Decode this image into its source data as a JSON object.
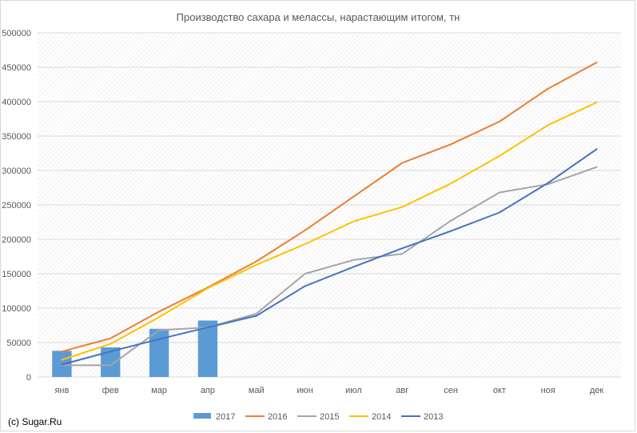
{
  "watermark": "(c) Sugar.Ru",
  "chart_data": {
    "type": "bar+line",
    "title": "Производство сахара и мелассы, нарастающим итогом, тн",
    "xlabel": "",
    "ylabel": "",
    "categories": [
      "янв",
      "фев",
      "мар",
      "апр",
      "май",
      "июн",
      "июл",
      "авг",
      "сен",
      "окт",
      "ноя",
      "дек"
    ],
    "ylim": [
      0,
      500000
    ],
    "yticks": [
      0,
      50000,
      100000,
      150000,
      200000,
      250000,
      300000,
      350000,
      400000,
      450000,
      500000
    ],
    "grid": true,
    "legend_position": "bottom",
    "series": [
      {
        "name": "2017",
        "type": "bar",
        "color": "#5b9bd5",
        "values": [
          38000,
          43000,
          70000,
          82000,
          null,
          null,
          null,
          null,
          null,
          null,
          null,
          null
        ]
      },
      {
        "name": "2016",
        "type": "line",
        "color": "#ed7d31",
        "values": [
          37000,
          56000,
          95000,
          130000,
          168000,
          213000,
          262000,
          311000,
          338000,
          371000,
          419000,
          457000
        ]
      },
      {
        "name": "2015",
        "type": "line",
        "color": "#a5a5a5",
        "values": [
          17000,
          17000,
          68000,
          72000,
          92000,
          150000,
          170000,
          179000,
          227000,
          268000,
          280000,
          305000
        ]
      },
      {
        "name": "2014",
        "type": "line",
        "color": "#ffc000",
        "values": [
          25000,
          48000,
          87000,
          129000,
          163000,
          193000,
          226000,
          247000,
          281000,
          321000,
          366000,
          399000
        ]
      },
      {
        "name": "2013",
        "type": "line",
        "color": "#4472c4",
        "values": [
          18000,
          37000,
          55000,
          72000,
          89000,
          132000,
          160000,
          187000,
          212000,
          239000,
          282000,
          331000
        ]
      }
    ]
  }
}
